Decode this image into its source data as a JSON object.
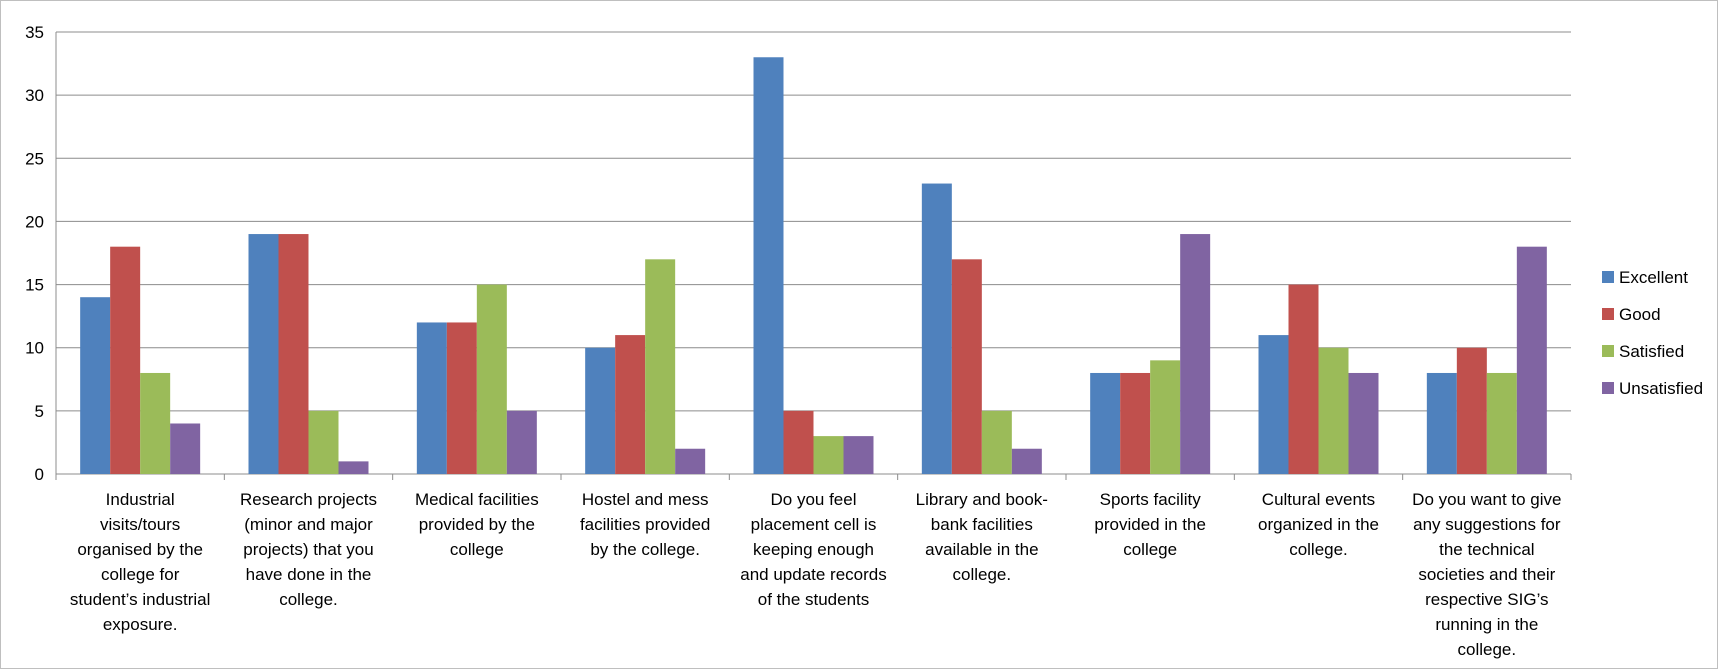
{
  "chart_data": {
    "type": "bar",
    "title": "",
    "xlabel": "",
    "ylabel": "",
    "ylim": [
      0,
      35
    ],
    "yticks": [
      0,
      5,
      10,
      15,
      20,
      25,
      30,
      35
    ],
    "grid": true,
    "legend_position": "right",
    "categories": [
      [
        "Industrial",
        "visits/tours",
        "organised by the",
        "college for",
        "student’s industrial",
        "exposure."
      ],
      [
        "Research projects",
        "(minor and major",
        "projects) that you",
        "have done in the",
        "college."
      ],
      [
        "Medical facilities",
        "provided by the",
        "college"
      ],
      [
        "Hostel and mess",
        "facilities provided",
        "by the college."
      ],
      [
        "Do you feel",
        "placement cell is",
        "keeping enough",
        "and update records",
        "of the students"
      ],
      [
        "Library and book-",
        "bank facilities",
        "available in the",
        "college."
      ],
      [
        "Sports facility",
        "provided in the",
        "college"
      ],
      [
        "Cultural events",
        "organized in the",
        "college."
      ],
      [
        "Do you want to give",
        "any suggestions for",
        "the technical",
        "societies and their",
        "respective SIG’s",
        "running in the",
        "college."
      ]
    ],
    "series": [
      {
        "name": "Excellent",
        "color": "#4f81bd",
        "values": [
          14,
          19,
          12,
          10,
          33,
          23,
          8,
          11,
          8
        ]
      },
      {
        "name": "Good",
        "color": "#c0504d",
        "values": [
          18,
          19,
          12,
          11,
          5,
          17,
          8,
          15,
          10
        ]
      },
      {
        "name": "Satisfied",
        "color": "#9bbb59",
        "values": [
          8,
          5,
          15,
          17,
          3,
          5,
          9,
          10,
          8
        ]
      },
      {
        "name": "Unsatisfied",
        "color": "#8064a2",
        "values": [
          4,
          1,
          5,
          2,
          3,
          2,
          19,
          8,
          18
        ]
      }
    ]
  }
}
